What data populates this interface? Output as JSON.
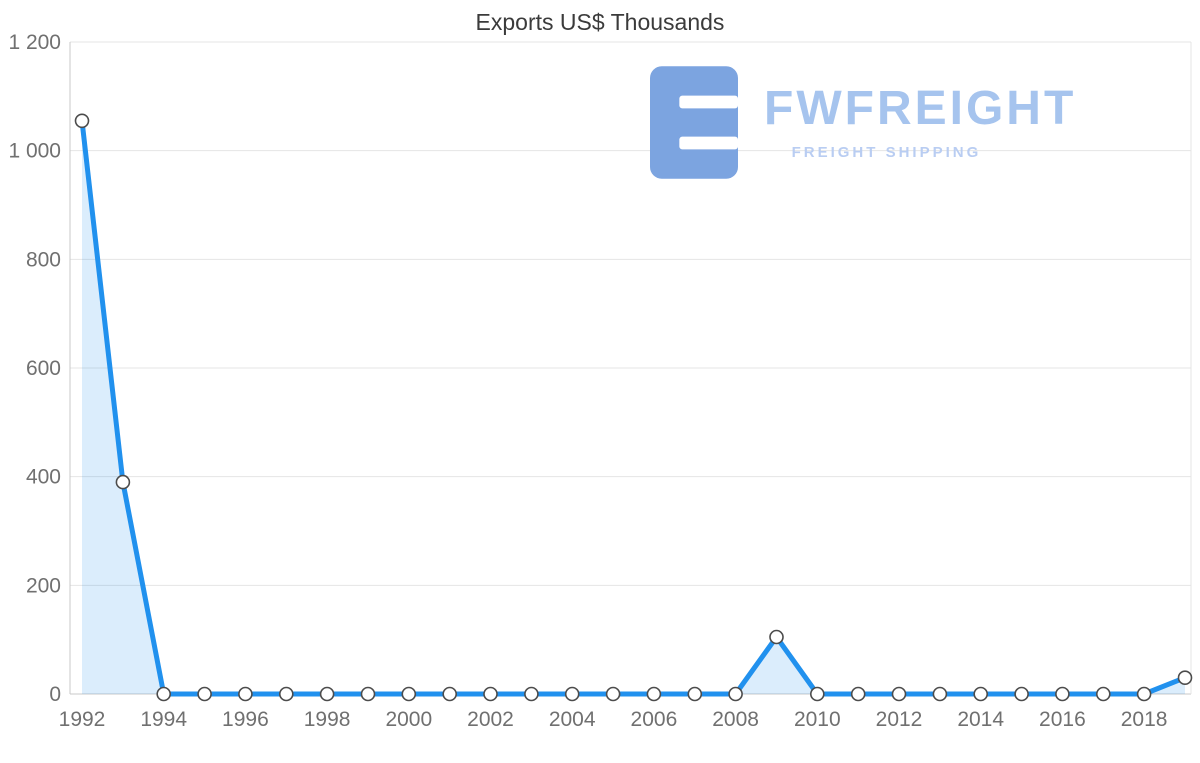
{
  "page": {
    "title": "Exports US$ Thousands"
  },
  "watermark": {
    "brand": "FWFREIGHT",
    "subtitle": "FREIGHT SHIPPING"
  },
  "chart_data": {
    "type": "area",
    "title": "Exports US$ Thousands",
    "xlabel": "",
    "ylabel": "",
    "x": [
      1992,
      1993,
      1994,
      1995,
      1996,
      1997,
      1998,
      1999,
      2000,
      2001,
      2002,
      2003,
      2004,
      2005,
      2006,
      2007,
      2008,
      2009,
      2010,
      2011,
      2012,
      2013,
      2014,
      2015,
      2016,
      2017,
      2018,
      2019
    ],
    "x_tick_labels": [
      "1992",
      "1994",
      "1996",
      "1998",
      "2000",
      "2002",
      "2004",
      "2006",
      "2008",
      "2010",
      "2012",
      "2014",
      "2016",
      "2018"
    ],
    "series": [
      {
        "name": "Exports US$ Thousands",
        "values": [
          1055,
          390,
          0,
          0,
          0,
          0,
          0,
          0,
          0,
          0,
          0,
          0,
          0,
          0,
          0,
          0,
          0,
          105,
          0,
          0,
          0,
          0,
          0,
          0,
          0,
          0,
          0,
          30
        ]
      }
    ],
    "ylim": [
      0,
      1200
    ],
    "y_ticks": [
      0,
      200,
      400,
      600,
      800,
      1000,
      1200
    ],
    "y_tick_labels": [
      "0",
      "200",
      "400",
      "600",
      "800",
      "1 000",
      "1 200"
    ],
    "grid": "horizontal",
    "legend": "none",
    "marker": "circle",
    "colors": {
      "line": "#2191ee",
      "area": "rgba(33,145,238,0.16)",
      "marker_fill": "#ffffff",
      "marker_stroke": "#4c4c4c",
      "grid": "#e4e4e4",
      "axis": "#c9c9c9",
      "tick_text": "#707070"
    }
  }
}
